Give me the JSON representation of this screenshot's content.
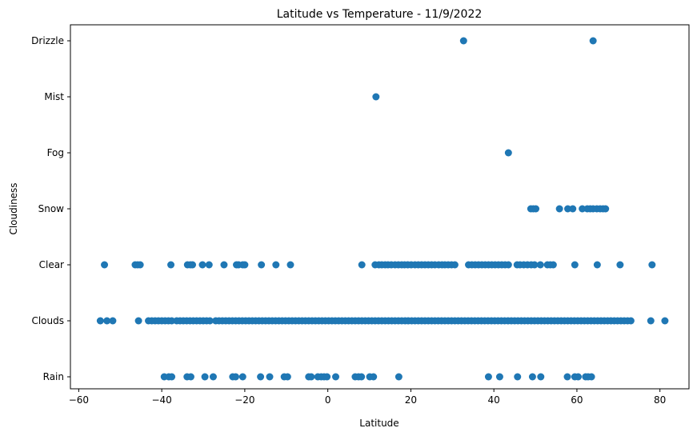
{
  "chart_data": {
    "type": "scatter",
    "title": "Latitude vs Temperature - 11/9/2022",
    "xlabel": "Latitude",
    "ylabel": "Cloudiness",
    "xlim": [
      -62,
      87
    ],
    "x_ticks": [
      -60,
      -40,
      -20,
      0,
      20,
      40,
      60,
      80
    ],
    "categories": [
      "Rain",
      "Clouds",
      "Clear",
      "Snow",
      "Fog",
      "Mist",
      "Drizzle"
    ],
    "marker_color": "#1f77b4",
    "grid": false,
    "legend": "none",
    "points": {
      "Drizzle": [
        32.7,
        63.9
      ],
      "Mist": [
        11.6
      ],
      "Fog": [
        43.5
      ],
      "Snow": [
        48.9,
        49.5,
        50.1,
        55.8,
        57.8,
        59.0,
        61.3,
        62.5,
        63.2,
        63.9,
        64.8,
        65.6,
        66.3,
        66.9
      ],
      "Clear": [
        -53.8,
        -46.4,
        -45.8,
        -45.2,
        -37.8,
        -33.8,
        -33.1,
        -32.6,
        -30.2,
        -28.6,
        -25.0,
        -22.0,
        -21.5,
        -20.5,
        -20.0,
        -16.0,
        -12.5,
        -9.0,
        8.2,
        11.4,
        12.3,
        13.0,
        13.8,
        14.5,
        15.3,
        16.2,
        17.0,
        17.8,
        18.5,
        19.3,
        20.1,
        21.0,
        21.8,
        22.6,
        23.4,
        24.2,
        25.0,
        25.8,
        26.7,
        27.5,
        28.2,
        29.0,
        29.8,
        30.6,
        33.9,
        34.7,
        35.5,
        36.3,
        37.1,
        37.9,
        38.7,
        39.5,
        40.3,
        41.1,
        41.9,
        42.7,
        43.5,
        45.6,
        46.3,
        47.2,
        48.1,
        49.0,
        49.8,
        51.2,
        52.9,
        53.6,
        54.3,
        59.5,
        64.9,
        70.4,
        78.1
      ],
      "Clouds": [
        -54.8,
        -53.2,
        -51.8,
        -45.6,
        -43.2,
        -42.4,
        -41.6,
        -40.8,
        -40.0,
        -39.2,
        -38.4,
        -37.6,
        -36.4,
        -35.6,
        -34.8,
        -34.0,
        -33.2,
        -32.4,
        -31.6,
        -30.8,
        -30.0,
        -29.2,
        -28.4,
        -27.0,
        -26.2,
        -25.4,
        -24.6,
        -23.8,
        -23.0,
        -22.2,
        -21.4,
        -20.6,
        -19.8,
        -19.0,
        -18.2,
        -17.4,
        -16.6,
        -15.8,
        -15.0,
        -14.2,
        -13.4,
        -12.6,
        -11.8,
        -11.0,
        -10.2,
        -9.4,
        -8.6,
        -7.8,
        -7.0,
        -6.2,
        -5.4,
        -4.6,
        -3.8,
        -3.0,
        -2.2,
        -1.4,
        -0.6,
        0.2,
        1.0,
        1.8,
        2.6,
        3.4,
        4.2,
        5.0,
        5.8,
        6.6,
        7.4,
        8.2,
        9.0,
        9.8,
        10.6,
        11.4,
        12.2,
        13.0,
        13.8,
        14.6,
        15.4,
        16.2,
        17.0,
        17.8,
        18.6,
        19.4,
        20.2,
        21.0,
        21.8,
        22.6,
        23.4,
        24.2,
        25.0,
        25.8,
        26.6,
        27.4,
        28.2,
        29.0,
        29.8,
        30.6,
        31.4,
        32.2,
        33.0,
        33.8,
        34.6,
        35.4,
        36.2,
        37.0,
        37.8,
        38.6,
        39.4,
        40.2,
        41.0,
        41.8,
        42.6,
        43.4,
        44.2,
        45.0,
        45.8,
        46.6,
        47.4,
        48.2,
        49.0,
        49.8,
        50.6,
        51.4,
        52.2,
        53.0,
        53.8,
        54.6,
        55.4,
        56.2,
        57.0,
        57.8,
        58.6,
        59.4,
        60.2,
        61.0,
        61.8,
        62.6,
        63.4,
        64.2,
        65.0,
        65.8,
        66.6,
        67.4,
        68.2,
        69.0,
        69.8,
        70.6,
        71.4,
        72.2,
        73.0,
        77.8,
        81.2
      ],
      "Rain": [
        -39.4,
        -38.3,
        -37.6,
        -33.9,
        -33.0,
        -29.6,
        -27.6,
        -22.9,
        -22.2,
        -20.5,
        -16.2,
        -14.0,
        -10.5,
        -9.7,
        -4.6,
        -4.0,
        -2.4,
        -1.6,
        -0.9,
        -0.2,
        1.9,
        6.6,
        7.4,
        8.1,
        10.1,
        11.0,
        17.1,
        38.7,
        41.4,
        45.7,
        49.3,
        51.3,
        57.7,
        59.5,
        60.3,
        62.1,
        62.7,
        63.5
      ]
    }
  }
}
